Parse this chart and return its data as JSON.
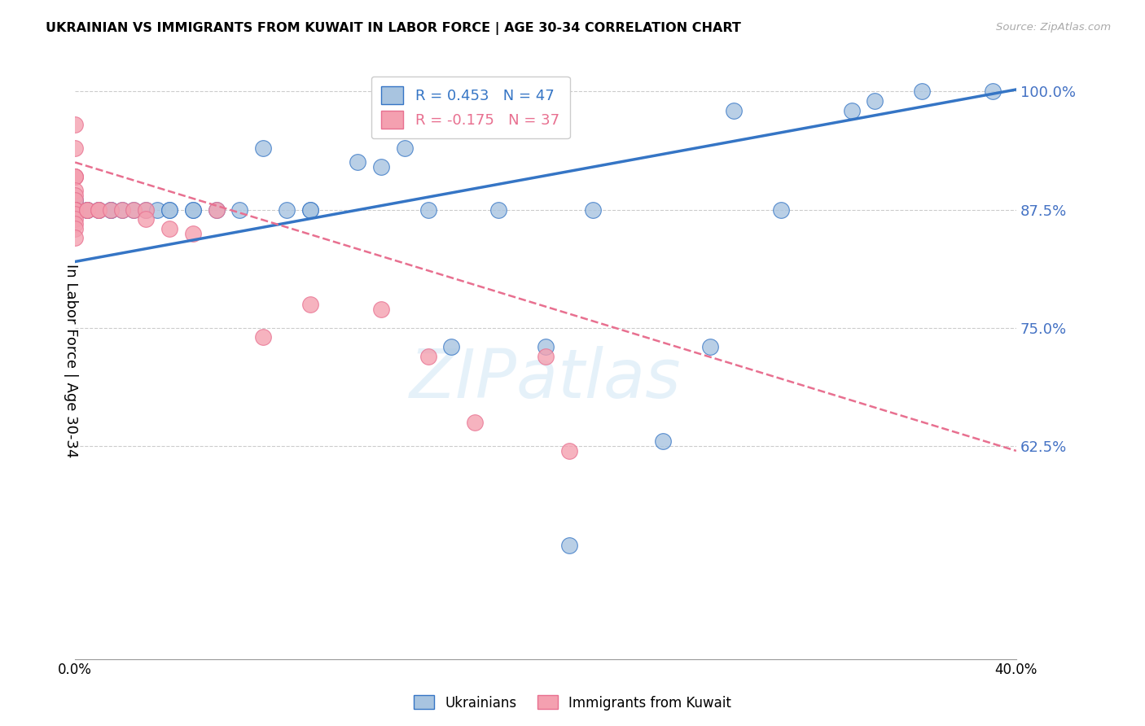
{
  "title": "UKRAINIAN VS IMMIGRANTS FROM KUWAIT IN LABOR FORCE | AGE 30-34 CORRELATION CHART",
  "source": "Source: ZipAtlas.com",
  "ylabel": "In Labor Force | Age 30-34",
  "xlim": [
    0.0,
    0.4
  ],
  "ylim": [
    0.4,
    1.03
  ],
  "yticks": [
    0.625,
    0.75,
    0.875,
    1.0
  ],
  "ytick_labels": [
    "62.5%",
    "75.0%",
    "87.5%",
    "100.0%"
  ],
  "xticks": [
    0.0,
    0.05,
    0.1,
    0.15,
    0.2,
    0.25,
    0.3,
    0.35,
    0.4
  ],
  "xtick_labels": [
    "0.0%",
    "",
    "",
    "",
    "",
    "",
    "",
    "",
    "40.0%"
  ],
  "watermark": "ZIPatlas",
  "blue_R": 0.453,
  "blue_N": 47,
  "pink_R": -0.175,
  "pink_N": 37,
  "blue_color": "#a8c4e0",
  "pink_color": "#f4a0b0",
  "blue_line_color": "#3575c5",
  "pink_line_color": "#e87090",
  "blue_scatter": [
    [
      0.0,
      0.875
    ],
    [
      0.0,
      0.875
    ],
    [
      0.0,
      0.875
    ],
    [
      0.0,
      0.875
    ],
    [
      0.0,
      0.875
    ],
    [
      0.0,
      0.88
    ],
    [
      0.0,
      0.885
    ],
    [
      0.0,
      0.875
    ],
    [
      0.0,
      0.875
    ],
    [
      0.0,
      0.875
    ],
    [
      0.005,
      0.875
    ],
    [
      0.005,
      0.875
    ],
    [
      0.01,
      0.875
    ],
    [
      0.01,
      0.875
    ],
    [
      0.015,
      0.875
    ],
    [
      0.015,
      0.875
    ],
    [
      0.02,
      0.875
    ],
    [
      0.025,
      0.875
    ],
    [
      0.03,
      0.875
    ],
    [
      0.035,
      0.875
    ],
    [
      0.04,
      0.875
    ],
    [
      0.04,
      0.875
    ],
    [
      0.05,
      0.875
    ],
    [
      0.05,
      0.875
    ],
    [
      0.06,
      0.875
    ],
    [
      0.07,
      0.875
    ],
    [
      0.08,
      0.94
    ],
    [
      0.09,
      0.875
    ],
    [
      0.1,
      0.875
    ],
    [
      0.1,
      0.875
    ],
    [
      0.12,
      0.925
    ],
    [
      0.13,
      0.92
    ],
    [
      0.14,
      0.94
    ],
    [
      0.15,
      0.875
    ],
    [
      0.16,
      0.73
    ],
    [
      0.18,
      0.875
    ],
    [
      0.2,
      0.73
    ],
    [
      0.21,
      0.52
    ],
    [
      0.22,
      0.875
    ],
    [
      0.25,
      0.63
    ],
    [
      0.27,
      0.73
    ],
    [
      0.28,
      0.98
    ],
    [
      0.3,
      0.875
    ],
    [
      0.33,
      0.98
    ],
    [
      0.34,
      0.99
    ],
    [
      0.36,
      1.0
    ],
    [
      0.39,
      1.0
    ]
  ],
  "pink_scatter": [
    [
      0.0,
      0.965
    ],
    [
      0.0,
      0.94
    ],
    [
      0.0,
      0.91
    ],
    [
      0.0,
      0.91
    ],
    [
      0.0,
      0.91
    ],
    [
      0.0,
      0.895
    ],
    [
      0.0,
      0.89
    ],
    [
      0.0,
      0.885
    ],
    [
      0.0,
      0.875
    ],
    [
      0.0,
      0.875
    ],
    [
      0.0,
      0.875
    ],
    [
      0.0,
      0.875
    ],
    [
      0.0,
      0.875
    ],
    [
      0.0,
      0.87
    ],
    [
      0.0,
      0.865
    ],
    [
      0.0,
      0.86
    ],
    [
      0.0,
      0.855
    ],
    [
      0.0,
      0.845
    ],
    [
      0.005,
      0.875
    ],
    [
      0.005,
      0.875
    ],
    [
      0.01,
      0.875
    ],
    [
      0.01,
      0.875
    ],
    [
      0.015,
      0.875
    ],
    [
      0.02,
      0.875
    ],
    [
      0.025,
      0.875
    ],
    [
      0.03,
      0.875
    ],
    [
      0.03,
      0.865
    ],
    [
      0.04,
      0.855
    ],
    [
      0.05,
      0.85
    ],
    [
      0.06,
      0.875
    ],
    [
      0.08,
      0.74
    ],
    [
      0.1,
      0.775
    ],
    [
      0.13,
      0.77
    ],
    [
      0.15,
      0.72
    ],
    [
      0.17,
      0.65
    ],
    [
      0.2,
      0.72
    ],
    [
      0.21,
      0.62
    ]
  ]
}
